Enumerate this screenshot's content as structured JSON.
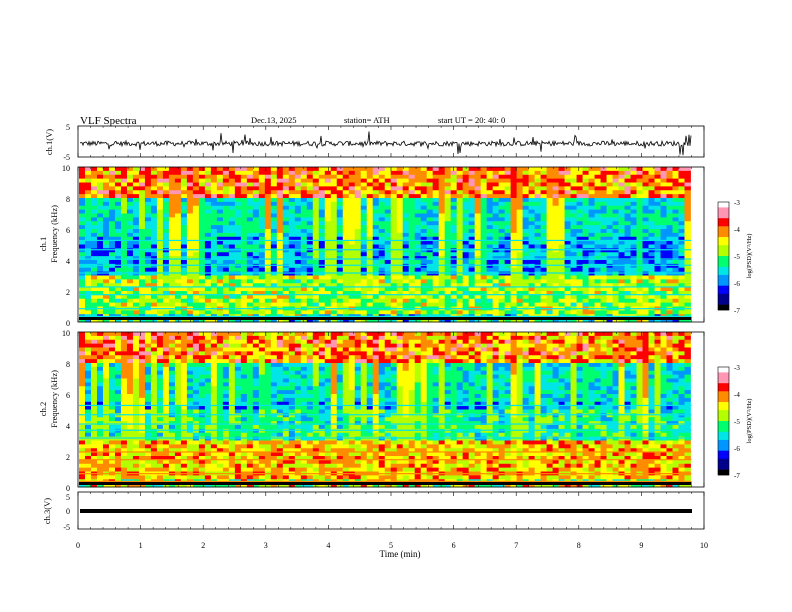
{
  "header": {
    "title": "VLF  Spectra",
    "date": "Dec.13, 2025",
    "station": "station= ATH",
    "start_ut": "start  UT  =   20: 40: 0"
  },
  "colors": {
    "colormap": [
      "#000000",
      "#00008c",
      "#0000ff",
      "#0096ff",
      "#00e6e6",
      "#00ff6e",
      "#b4ff00",
      "#ffff00",
      "#ff8c00",
      "#ff0000",
      "#ff96b4",
      "#ffffff"
    ],
    "waveform": "#000000",
    "axis": "#000000"
  },
  "chart_data": [
    {
      "type": "line",
      "id": "ch1-waveform",
      "ylabel": "ch.1(V)",
      "ylim": [
        -5,
        5
      ],
      "yticks": [
        "5",
        "-5"
      ],
      "xlim": [
        0,
        10
      ],
      "data_end_min": 9.8
    },
    {
      "type": "heatmap",
      "id": "ch1-spectrogram",
      "ylabel": "ch.1\nFrequency (kHz)",
      "ylabel_top": "ch.1",
      "ylabel_bottom": "Frequency (kHz)",
      "ylim": [
        0,
        10
      ],
      "yticks": [
        "10",
        "8",
        "6",
        "4",
        "2",
        "0"
      ],
      "xlim": [
        0,
        10
      ],
      "data_end_min": 9.8,
      "colorbar": {
        "label": "log(PSD)(V²/Hz)",
        "range": [
          -7,
          -3
        ],
        "ticks": [
          "-3",
          "-4",
          "-5",
          "-6",
          "-7"
        ]
      }
    },
    {
      "type": "heatmap",
      "id": "ch2-spectrogram",
      "ylabel_top": "ch.2",
      "ylabel_bottom": "Frequency (kHz)",
      "ylim": [
        0,
        10
      ],
      "yticks": [
        "10",
        "8",
        "6",
        "4",
        "2",
        "0"
      ],
      "xlim": [
        0,
        10
      ],
      "data_end_min": 9.8,
      "colorbar": {
        "label": "log(PSD)(V²/Hz)",
        "range": [
          -7,
          -3
        ],
        "ticks": [
          "-3",
          "-4",
          "-5",
          "-6",
          "-7"
        ]
      }
    },
    {
      "type": "line",
      "id": "ch3-waveform",
      "ylabel": "ch.3(V)",
      "ylim": [
        -5,
        5
      ],
      "yticks": [
        "5",
        "0",
        "-5"
      ],
      "xlim": [
        0,
        10
      ],
      "data_end_min": 9.8
    }
  ],
  "xaxis": {
    "label": "Time  (min)",
    "ticks": [
      "0",
      "1",
      "2",
      "3",
      "4",
      "5",
      "6",
      "7",
      "8",
      "9",
      "10"
    ]
  },
  "colorbar_label": "log(PSD)(V²/Hz)"
}
